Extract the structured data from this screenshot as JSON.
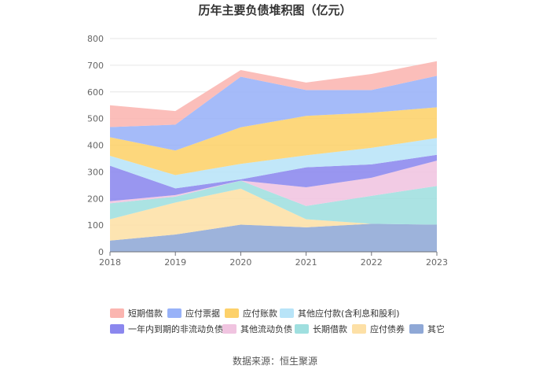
{
  "chart_data": {
    "type": "area",
    "title": "历年主要负债堆积图（亿元）",
    "source": "数据来源：恒生聚源",
    "x": [
      "2018",
      "2019",
      "2020",
      "2021",
      "2022",
      "2023"
    ],
    "ylim": [
      0,
      800
    ],
    "yticks": [
      "0",
      "100",
      "200",
      "300",
      "400",
      "500",
      "600",
      "700",
      "800"
    ],
    "grid": true,
    "stacked": true,
    "legend_position": "bottom",
    "series": [
      {
        "name": "其它",
        "color": "#8fa8d6",
        "values": [
          42,
          65,
          102,
          92,
          105,
          102
        ]
      },
      {
        "name": "应付债券",
        "color": "#fde0a6",
        "values": [
          80,
          120,
          135,
          30,
          0,
          0
        ]
      },
      {
        "name": "长期借款",
        "color": "#9fdfdf",
        "values": [
          60,
          22,
          30,
          50,
          105,
          145
        ]
      },
      {
        "name": "其他流动负债",
        "color": "#f0c4e0",
        "values": [
          8,
          6,
          0,
          70,
          68,
          95
        ]
      },
      {
        "name": "一年内到期的非流动负债",
        "color": "#8b87ee",
        "values": [
          133,
          25,
          5,
          75,
          50,
          22
        ]
      },
      {
        "name": "其他应付款(含利息和股利)",
        "color": "#b8e4f8",
        "values": [
          37,
          50,
          58,
          45,
          62,
          63
        ]
      },
      {
        "name": "应付账款",
        "color": "#fdd16a",
        "values": [
          70,
          92,
          137,
          148,
          132,
          115
        ]
      },
      {
        "name": "应付票据",
        "color": "#98b2f8",
        "values": [
          38,
          97,
          190,
          97,
          85,
          118
        ]
      },
      {
        "name": "短期借款",
        "color": "#fbb5b0",
        "values": [
          82,
          51,
          25,
          28,
          60,
          55
        ]
      }
    ],
    "legend_order": [
      "短期借款",
      "应付票据",
      "应付账款",
      "其他应付款(含利息和股利)",
      "一年内到期的非流动负债",
      "其他流动负债",
      "长期借款",
      "应付债券",
      "其它"
    ]
  }
}
